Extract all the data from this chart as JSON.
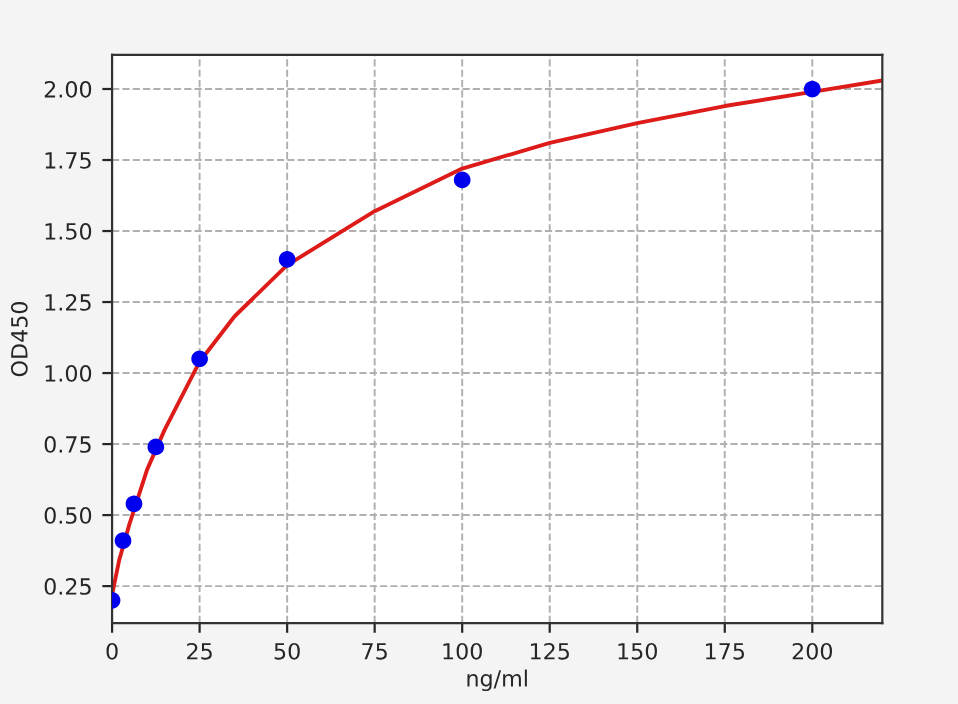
{
  "chart_data": {
    "type": "scatter",
    "xlabel": "ng/ml",
    "ylabel": "OD450",
    "xlim": [
      0,
      220
    ],
    "ylim": [
      0.12,
      2.12
    ],
    "xticks": [
      0,
      25,
      50,
      75,
      100,
      125,
      150,
      175,
      200
    ],
    "yticks": [
      {
        "value": 0.25,
        "label": "0.25"
      },
      {
        "value": 0.5,
        "label": "0.50"
      },
      {
        "value": 0.75,
        "label": "0.75"
      },
      {
        "value": 1.0,
        "label": "1.00"
      },
      {
        "value": 1.25,
        "label": "1.25"
      },
      {
        "value": 1.5,
        "label": "1.50"
      },
      {
        "value": 1.75,
        "label": "1.75"
      },
      {
        "value": 2.0,
        "label": "2.00"
      }
    ],
    "grid": true,
    "legend": false,
    "series": [
      {
        "type": "line",
        "color": "#dd1c1a",
        "marker": "none",
        "line_style": "solid",
        "x": [
          0,
          2,
          5,
          10,
          15,
          25,
          35,
          50,
          75,
          100,
          125,
          150,
          175,
          200,
          220
        ],
        "values": [
          0.22,
          0.34,
          0.47,
          0.66,
          0.8,
          1.04,
          1.2,
          1.38,
          1.57,
          1.72,
          1.81,
          1.88,
          1.94,
          1.99,
          2.03
        ]
      },
      {
        "color": "#0000ee",
        "marker": "circle",
        "x": [
          0,
          3.125,
          6.25,
          12.5,
          25,
          50,
          100,
          200
        ],
        "values": [
          0.2,
          0.41,
          0.54,
          0.74,
          1.05,
          1.4,
          1.68,
          2.0
        ]
      }
    ]
  }
}
